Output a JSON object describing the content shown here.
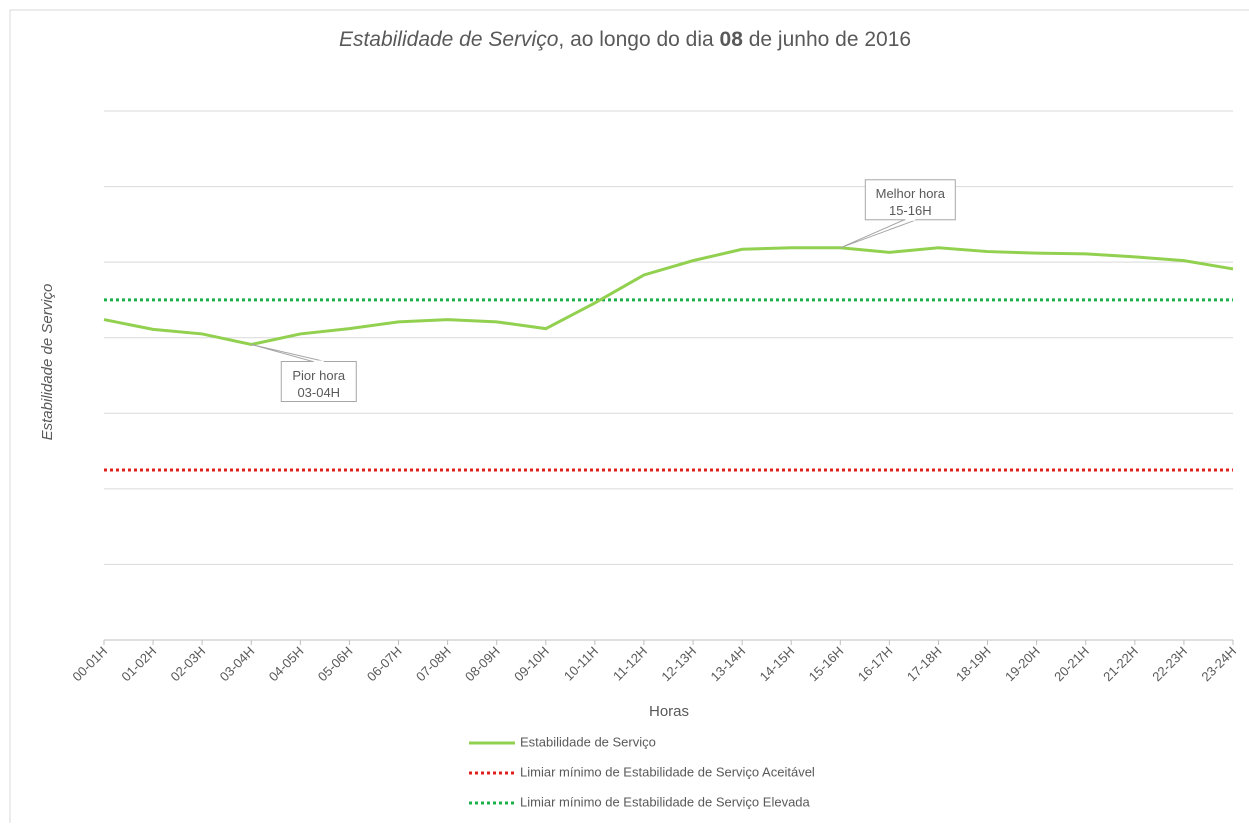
{
  "chart_data": {
    "type": "line",
    "title": [
      "Estabilidade de Serviço",
      ", ao longo do dia ",
      "08",
      " de junho de 2016"
    ],
    "x_label": "Horas",
    "y_label": "Estabilidade de Serviço",
    "categories": [
      "00-01H",
      "01-02H",
      "02-03H",
      "03-04H",
      "04-05H",
      "05-06H",
      "06-07H",
      "07-08H",
      "08-09H",
      "09-10H",
      "10-11H",
      "11-12H",
      "12-13H",
      "13-14H",
      "14-15H",
      "15-16H",
      "16-17H",
      "17-18H",
      "18-19H",
      "19-20H",
      "20-21H",
      "21-22H",
      "22-23H",
      "23-24H"
    ],
    "series": [
      {
        "name": "Estabilidade de Serviço",
        "color": "#92d050",
        "values": [
          4.24,
          4.11,
          4.05,
          3.91,
          4.05,
          4.12,
          4.21,
          4.24,
          4.21,
          4.12,
          4.46,
          4.83,
          5.02,
          5.17,
          5.19,
          5.19,
          5.13,
          5.19,
          5.14,
          5.12,
          5.11,
          5.07,
          5.02,
          4.91
        ]
      }
    ],
    "reference_lines": [
      {
        "name": "Limiar mínimo de Estabilidade de Serviço Aceitável",
        "color": "#e0201c",
        "value": 2.25,
        "style": "dotted"
      },
      {
        "name": "Limiar mínimo de Estabilidade de Serviço Elevada",
        "color": "#1cb04a",
        "value": 4.5,
        "style": "dotted"
      }
    ],
    "annotations": [
      {
        "lines": [
          "Pior hora",
          "03-04H"
        ],
        "x": "03-04H"
      },
      {
        "lines": [
          "Melhor hora",
          "15-16H"
        ],
        "x": "15-16H"
      }
    ],
    "ylim": [
      0,
      7
    ],
    "yticks": [
      0,
      1,
      2,
      3,
      4,
      5,
      6,
      7
    ],
    "grid": true
  }
}
